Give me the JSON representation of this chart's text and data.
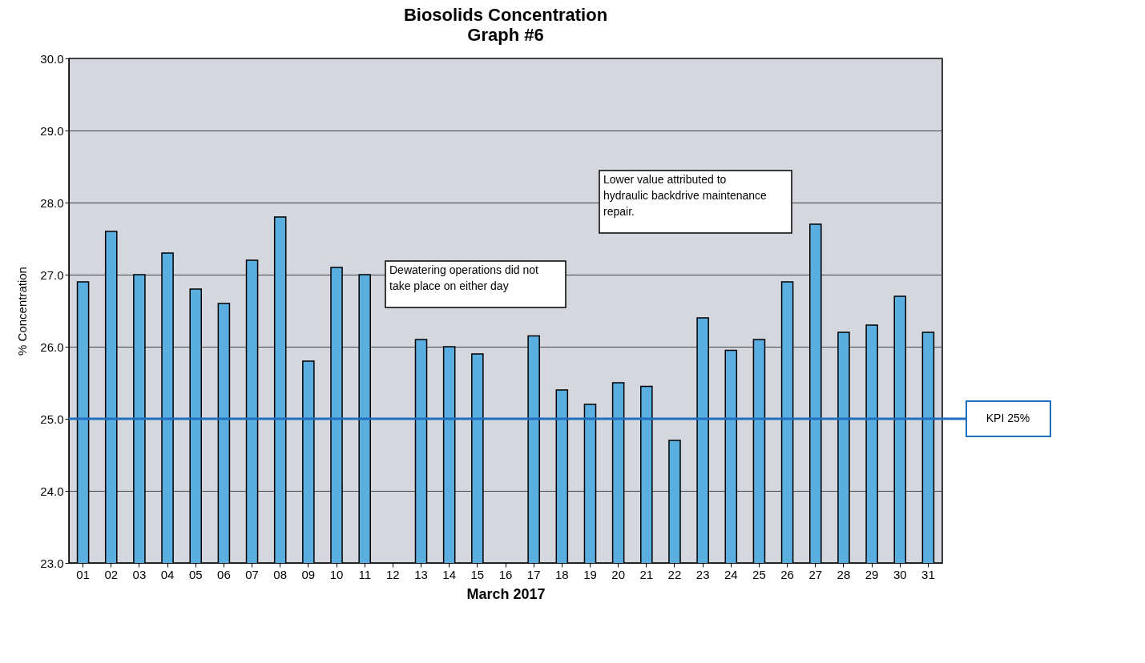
{
  "chart_data": {
    "type": "bar",
    "title": "Biosolids Concentration",
    "subtitle": "Graph #6",
    "xlabel": "March 2017",
    "ylabel": "% Concentration",
    "categories": [
      "01",
      "02",
      "03",
      "04",
      "05",
      "06",
      "07",
      "08",
      "09",
      "10",
      "11",
      "12",
      "13",
      "14",
      "15",
      "16",
      "17",
      "18",
      "19",
      "20",
      "21",
      "22",
      "23",
      "24",
      "25",
      "26",
      "27",
      "28",
      "29",
      "30",
      "31"
    ],
    "values": [
      26.9,
      27.6,
      27.0,
      27.3,
      26.8,
      26.6,
      27.2,
      27.8,
      25.8,
      27.1,
      27.0,
      null,
      26.1,
      26.0,
      25.9,
      null,
      26.15,
      25.4,
      25.2,
      25.5,
      25.45,
      24.7,
      26.4,
      25.95,
      26.1,
      26.9,
      27.7,
      26.2,
      26.3,
      26.7,
      26.2
    ],
    "color": "#5aaee0",
    "ylim": [
      23,
      30
    ],
    "yticks": [
      {
        "value": 23,
        "label": "23.0"
      },
      {
        "value": 24,
        "label": "24.0"
      },
      {
        "value": 25,
        "label": "25.0"
      },
      {
        "value": 26,
        "label": "26.0"
      },
      {
        "value": 27,
        "label": "27.0"
      },
      {
        "value": 28,
        "label": "28.0"
      },
      {
        "value": 29,
        "label": "29.0"
      },
      {
        "value": 30,
        "label": "30.0"
      }
    ],
    "grid": "y",
    "ref_lines": [
      {
        "axis": "y",
        "value": 25,
        "label": "KPI 25%",
        "color": "#1f6fc0"
      }
    ],
    "annotations": [
      "Dewatering operations did not take place on either day",
      "Lower value attributed to hydraulic backdrive maintenance repair."
    ]
  }
}
